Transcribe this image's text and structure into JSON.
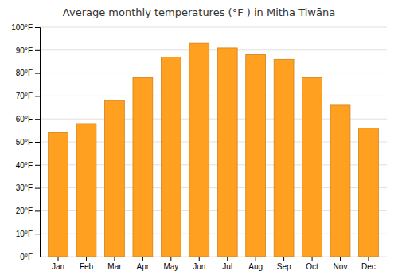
{
  "chart_data": {
    "type": "bar",
    "title": "Average monthly temperatures (°F ) in Mitha Tiwāna",
    "categories": [
      "Jan",
      "Feb",
      "Mar",
      "Apr",
      "May",
      "Jun",
      "Jul",
      "Aug",
      "Sep",
      "Oct",
      "Nov",
      "Dec"
    ],
    "values": [
      54,
      58,
      68,
      78,
      87,
      93,
      91,
      88,
      86,
      78,
      66,
      56
    ],
    "color": "#FFA020",
    "ylim": [
      0,
      100
    ],
    "yticks": [
      {
        "value": 0,
        "label": "0°F"
      },
      {
        "value": 10,
        "label": "10°F"
      },
      {
        "value": 20,
        "label": "20°F"
      },
      {
        "value": 30,
        "label": "30°F"
      },
      {
        "value": 40,
        "label": "40°F"
      },
      {
        "value": 50,
        "label": "50°F"
      },
      {
        "value": 60,
        "label": "60°F"
      },
      {
        "value": 70,
        "label": "70°F"
      },
      {
        "value": 80,
        "label": "80°F"
      },
      {
        "value": 90,
        "label": "90°F"
      },
      {
        "value": 100,
        "label": "100°F"
      }
    ],
    "grid": true
  }
}
